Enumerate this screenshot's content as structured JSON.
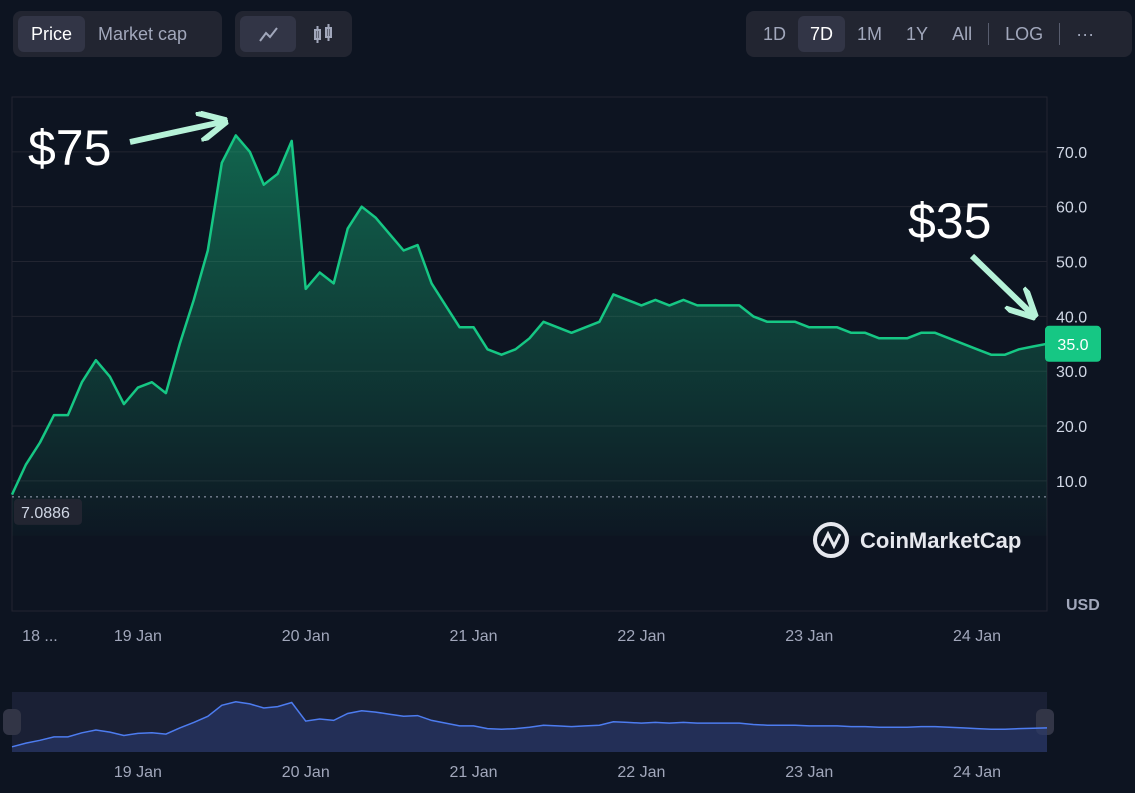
{
  "toolbar": {
    "metrics": [
      "Price",
      "Market cap"
    ],
    "ranges": [
      "1D",
      "7D",
      "1M",
      "1Y",
      "All"
    ],
    "log": "LOG",
    "more": "···"
  },
  "chart_data": {
    "type": "line",
    "categories": [
      null,
      null,
      "18 ...",
      null,
      null,
      null,
      null,
      null,
      null,
      "19 Jan",
      null,
      null,
      null,
      null,
      null,
      null,
      null,
      null,
      null,
      null,
      null,
      "20 Jan",
      null,
      null,
      null,
      null,
      null,
      null,
      null,
      null,
      null,
      null,
      null,
      "21 Jan",
      null,
      null,
      null,
      null,
      null,
      null,
      null,
      null,
      null,
      null,
      null,
      "22 Jan",
      null,
      null,
      null,
      null,
      null,
      null,
      null,
      null,
      null,
      null,
      null,
      "23 Jan",
      null,
      null,
      null,
      null,
      null,
      null,
      null,
      null,
      null,
      null,
      null,
      "24 Jan",
      null,
      null,
      null,
      null,
      null
    ],
    "series": [
      {
        "color": "#16c784",
        "values": [
          7.5,
          13,
          17,
          22,
          22,
          28,
          32,
          29,
          24,
          27,
          28,
          26,
          35,
          43,
          52,
          68,
          73,
          70,
          64,
          66,
          72,
          45,
          48,
          46,
          56,
          60,
          58,
          55,
          52,
          53,
          46,
          42,
          38,
          38,
          34,
          33,
          34,
          36,
          39,
          38,
          37,
          38,
          39,
          44,
          43,
          42,
          43,
          42,
          43,
          42,
          42,
          42,
          42,
          40,
          39,
          39,
          39,
          38,
          38,
          38,
          37,
          37,
          36,
          36,
          36,
          37,
          37,
          36,
          35,
          34,
          33,
          33,
          34,
          34.5,
          35
        ]
      }
    ],
    "ylim": [
      0,
      80
    ],
    "yticks": [
      {
        "value": 10,
        "label": "10.0"
      },
      {
        "value": 20,
        "label": "20.0"
      },
      {
        "value": 30,
        "label": "30.0"
      },
      {
        "value": 40,
        "label": "40.0"
      },
      {
        "value": 50,
        "label": "50.0"
      },
      {
        "value": 60,
        "label": "60.0"
      },
      {
        "value": 70,
        "label": "70.0"
      }
    ],
    "grid": true,
    "low_value": 7.0886,
    "last_value": {
      "value": 35,
      "label": "35.0"
    },
    "annotations": [
      "$75",
      "$35"
    ],
    "currency": "USD",
    "watermark": "CoinMarketCap"
  }
}
